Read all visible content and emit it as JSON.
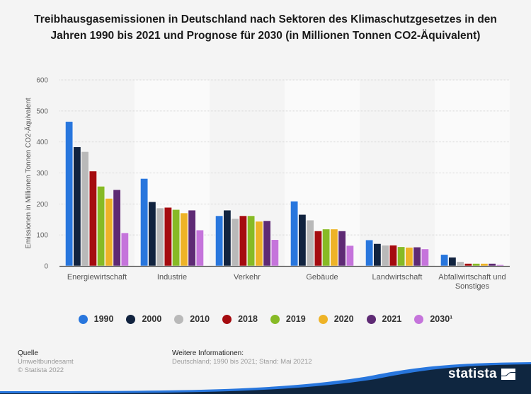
{
  "header": {
    "title": "Treibhausgasemissionen in Deutschland nach Sektoren des Klimaschutzgesetzes in den Jahren 1990 bis 2021 und Prognose für 2030 (in Millionen Tonnen CO2-Äquivalent)"
  },
  "chart_data": {
    "type": "bar",
    "title": "Treibhausgasemissionen in Deutschland nach Sektoren des Klimaschutzgesetzes in den Jahren 1990 bis 2021 und Prognose für 2030 (in Millionen Tonnen CO2-Äquivalent)",
    "xlabel": "",
    "ylabel": "Emissionen in Millionen Tonnen CO2-Äquivalent",
    "ylim": [
      0,
      600
    ],
    "yticks": [
      0,
      100,
      200,
      300,
      400,
      500,
      600
    ],
    "grid": true,
    "legend_position": "bottom",
    "categories": [
      "Energiewirtschaft",
      "Industrie",
      "Verkehr",
      "Gebäude",
      "Landwirtschaft",
      "Abfallwirtschaft und Sonstiges"
    ],
    "category_lines": [
      [
        "Energiewirtschaft"
      ],
      [
        "Industrie"
      ],
      [
        "Verkehr"
      ],
      [
        "Gebäude"
      ],
      [
        "Landwirtschaft"
      ],
      [
        "Abfallwirtschaft und",
        "Sonstiges"
      ]
    ],
    "series": [
      {
        "name": "1990",
        "color": "#2876dd",
        "values": [
          466,
          282,
          162,
          209,
          84,
          37
        ]
      },
      {
        "name": "2000",
        "color": "#11233f",
        "values": [
          384,
          207,
          180,
          166,
          72,
          28
        ]
      },
      {
        "name": "2010",
        "color": "#b9b9b9",
        "values": [
          369,
          187,
          153,
          148,
          67,
          14
        ]
      },
      {
        "name": "2018",
        "color": "#a50b0f",
        "values": [
          306,
          189,
          162,
          113,
          67,
          8
        ]
      },
      {
        "name": "2019",
        "color": "#87ba25",
        "values": [
          257,
          182,
          162,
          119,
          62,
          8
        ]
      },
      {
        "name": "2020",
        "color": "#eeb327",
        "values": [
          218,
          171,
          144,
          119,
          60,
          8
        ]
      },
      {
        "name": "2021",
        "color": "#5e2a74",
        "values": [
          246,
          180,
          146,
          113,
          61,
          8
        ]
      },
      {
        "name": "2030¹",
        "color": "#c574db",
        "values": [
          107,
          116,
          85,
          66,
          55,
          4
        ]
      }
    ]
  },
  "footer": {
    "source_heading": "Quelle",
    "source": "Umweltbundesamt",
    "copyright": "© Statista 2022",
    "info_heading": "Weitere Informationen:",
    "info": "Deutschland; 1990 bis 2021; Stand: Mai 20212",
    "brand": "statista"
  }
}
